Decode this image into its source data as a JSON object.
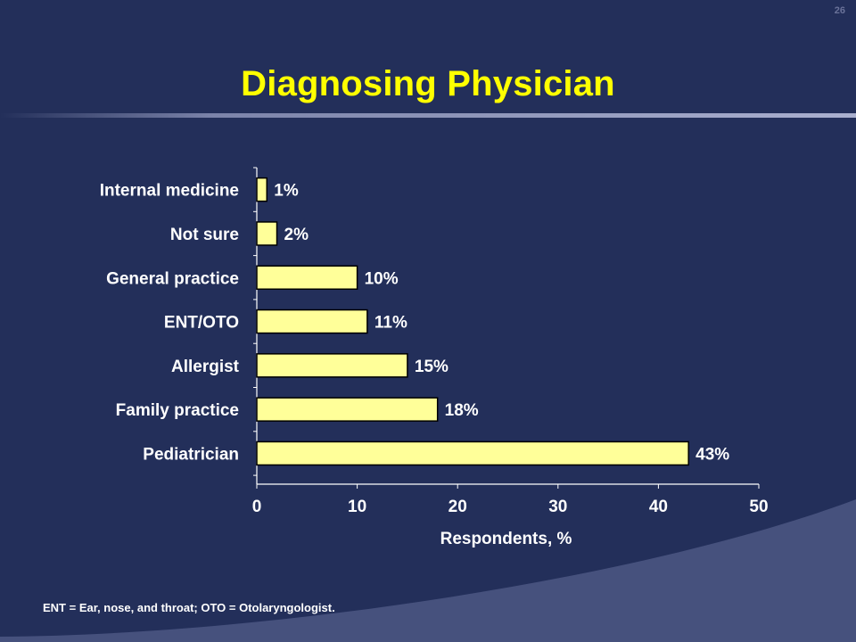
{
  "slide": {
    "page_number": "26",
    "title": "Diagnosing Physician",
    "footnote": "ENT = Ear, nose, and throat; OTO = Otolaryngologist."
  },
  "colors": {
    "background": "#232f5a",
    "title": "#ffff00",
    "bar_fill": "#ffff99",
    "bar_stroke": "#000000",
    "text": "#ffffff",
    "accent_band": "#46517d"
  },
  "chart_data": {
    "type": "bar",
    "orientation": "horizontal",
    "categories": [
      "Internal medicine",
      "Not sure",
      "General practice",
      "ENT/OTO",
      "Allergist",
      "Family practice",
      "Pediatrician"
    ],
    "values": [
      1,
      2,
      10,
      11,
      15,
      18,
      43
    ],
    "data_labels": [
      "1%",
      "2%",
      "10%",
      "11%",
      "15%",
      "18%",
      "43%"
    ],
    "xlabel": "Respondents, %",
    "ylabel": "",
    "xlim": [
      0,
      50
    ],
    "xticks": [
      0,
      10,
      20,
      30,
      40,
      50
    ],
    "xtick_labels": [
      "0",
      "10",
      "20",
      "30",
      "40",
      "50"
    ],
    "grid": false,
    "legend": "none"
  }
}
